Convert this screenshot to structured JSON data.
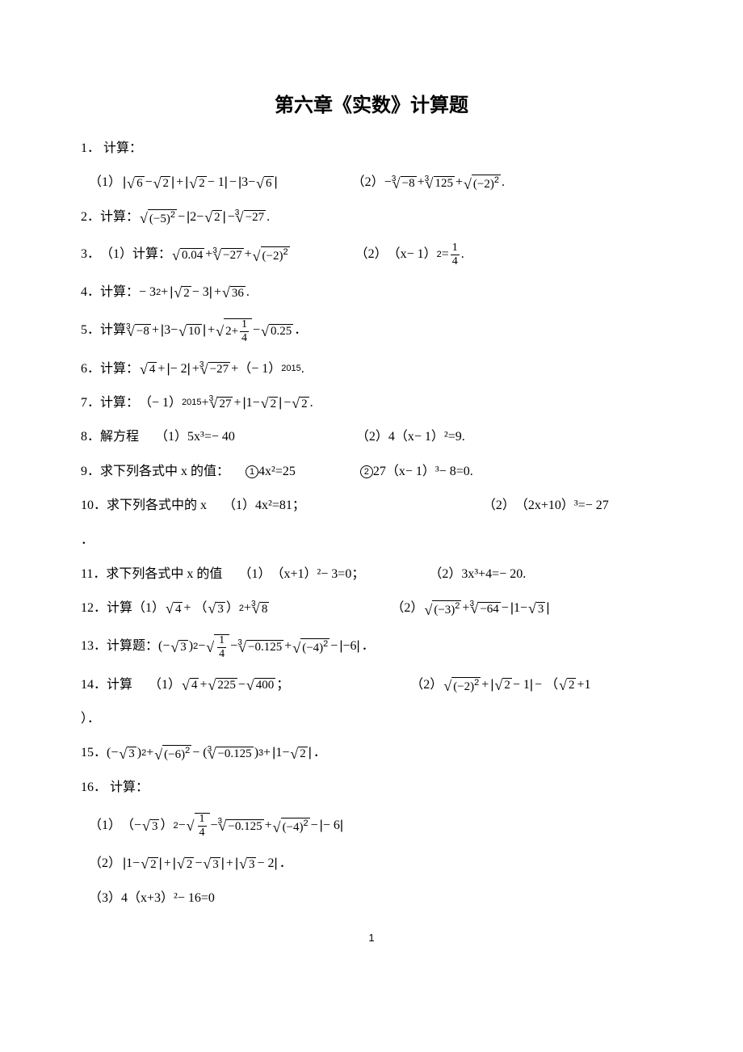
{
  "title": "第六章《实数》计算题",
  "page_number": "1",
  "labels": {
    "jisuan": "计算：",
    "jisuan_noc": "计算",
    "jisuanti": "计算题：",
    "jiefangcheng": "解方程",
    "qiu_x_zhi": "求下列各式中 x 的值：",
    "qiu_x_noc": "求下列各式中的 x",
    "qiu_x_zhi_noc": "求下列各式中 x 的值"
  },
  "problems": {
    "p1": "1．",
    "p2": "2．",
    "p3": "3．",
    "p4": "4．",
    "p5": "5．",
    "p6": "6．",
    "p7": "7．",
    "p8": "8．",
    "p9": "9．",
    "p10": "10．",
    "p11": "11．",
    "p12": "12．",
    "p13": "13．",
    "p14": "14．",
    "p15": "15．",
    "p16": "16．"
  },
  "t": {
    "s1": "（1）",
    "s2": "（2）",
    "s3": "（3）",
    "sqrt6": "6",
    "sqrt2": "2",
    "sqrt3": "3",
    "m1": "－",
    "plus": "+",
    "min": "−",
    "eq": "=",
    "one": "1",
    "two": "2",
    "three": "3",
    "four": "4",
    "five": "5",
    "six": "6",
    "nine": "9",
    "ten": "10",
    "x": "x",
    "neg8": "−8",
    "n125": "125",
    "n27": "27",
    "n_27": "−27",
    "neg5sq": "(−5)",
    "neg2sq": "(−2)",
    "neg3sq": "(−3)",
    "neg4sq": "(−4)",
    "neg6sq": "(−6)",
    "n004": "0.04",
    "xm1": "（x− 1）",
    "n36": "36",
    "n10": "10",
    "n025": "0.25",
    "n0125": "−0.125",
    "n225": "225",
    "n400": "400",
    "n_64": "−64",
    "neg3sq2": "−3²",
    "year": "2015",
    "eq5x3": "5x³=− 40",
    "eq4xm1": "4（x− 1）²=9.",
    "eq4x2": "4x²=25",
    "eq27xm1": "27（x− 1）³− 8=0.",
    "eq4x281": "4x²=81；",
    "eq2x10": "（2x+10）³=− 27",
    "eqxp1": "（x+1）²− 3=0；",
    "eq3x3": "3x³+4=− 20.",
    "dot": "．",
    "pr": "）．",
    "eq4xp3": "4（x+3）²− 16=0",
    "neg1": "（− 1）",
    "sqrt8r": "8",
    "sqrt2r": "2+",
    "f14n": "1",
    "f14d": "4",
    "jisuan_c": "计算：",
    "jisuan_ps": "计算"
  }
}
